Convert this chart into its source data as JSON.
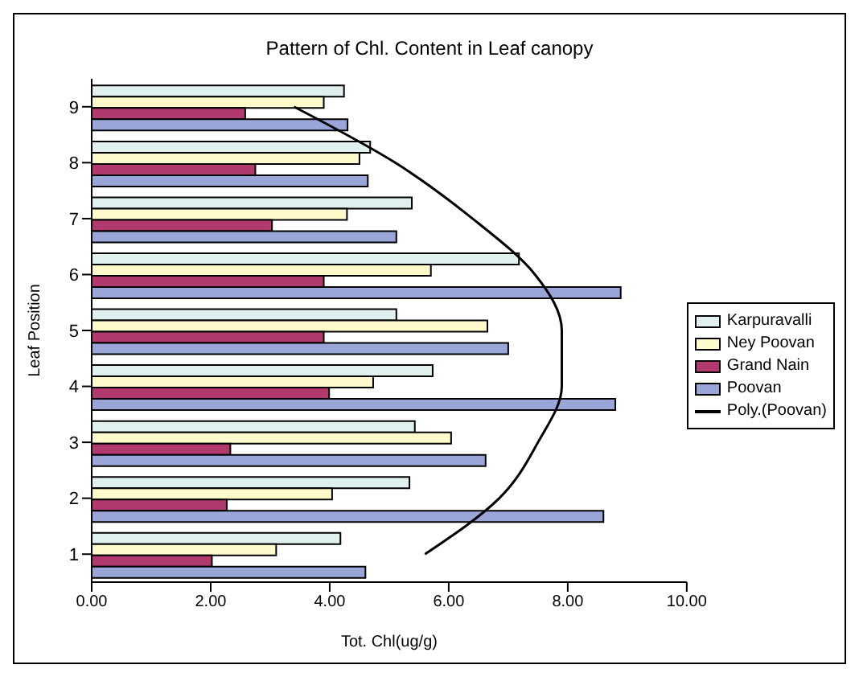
{
  "chart_data": {
    "type": "bar",
    "orientation": "horizontal",
    "title": "Pattern of Chl. Content in Leaf canopy",
    "xlabel": "Tot. Chl(ug/g)",
    "ylabel": "Leaf Position",
    "categories": [
      "9",
      "8",
      "7",
      "6",
      "5",
      "4",
      "3",
      "2",
      "1"
    ],
    "series": [
      {
        "name": "Karpuravalli",
        "color": "#dff0ee",
        "values": [
          4.24,
          4.68,
          5.38,
          7.18,
          5.12,
          5.73,
          5.43,
          5.34,
          4.18
        ]
      },
      {
        "name": "Ney Poovan",
        "color": "#fffacc",
        "values": [
          3.9,
          4.5,
          4.29,
          5.7,
          6.65,
          4.73,
          6.04,
          4.04,
          3.1
        ]
      },
      {
        "name": "Grand Nain",
        "color": "#b03a6e",
        "values": [
          2.58,
          2.75,
          3.03,
          3.9,
          3.9,
          3.99,
          2.33,
          2.27,
          2.02
        ]
      },
      {
        "name": "Poovan",
        "color": "#9aa6d8",
        "values": [
          4.3,
          4.64,
          5.12,
          8.89,
          7.0,
          8.8,
          6.62,
          8.6,
          4.6
        ]
      },
      {
        "name": "Poly.(Poovan)",
        "type": "line",
        "color": "#000000",
        "values": [
          3.4,
          5.1,
          6.4,
          7.45,
          7.9,
          7.9,
          7.5,
          6.85,
          5.6
        ]
      }
    ],
    "xlim": [
      0,
      10
    ],
    "xticks": [
      {
        "value": 0,
        "label": "0.00"
      },
      {
        "value": 2,
        "label": "2.00"
      },
      {
        "value": 4,
        "label": "4.00"
      },
      {
        "value": 6,
        "label": "6.00"
      },
      {
        "value": 8,
        "label": "8.00"
      },
      {
        "value": 10,
        "label": "10.00"
      }
    ],
    "legend": "right",
    "marker": "none",
    "grid": false
  }
}
